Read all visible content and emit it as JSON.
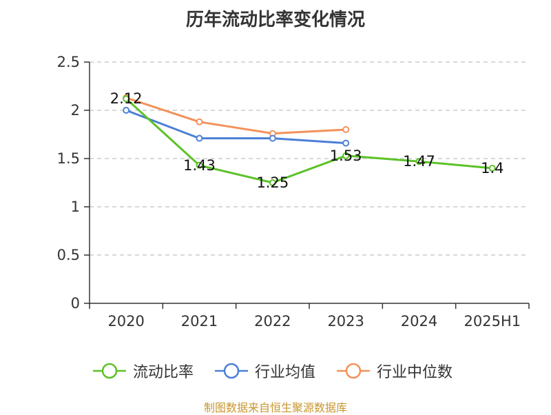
{
  "title": "历年流动比率变化情况",
  "source": "制图数据来自恒生聚源数据库",
  "chart_data": {
    "type": "line",
    "categories": [
      "2020",
      "2021",
      "2022",
      "2023",
      "2024",
      "2025H1"
    ],
    "ylim": [
      0,
      2.5
    ],
    "yticks": [
      "0",
      "0.5",
      "1",
      "1.5",
      "2",
      "2.5"
    ],
    "grid": true,
    "legend_position": "bottom",
    "series": [
      {
        "name": "流动比率",
        "color": "#5bc227",
        "values": [
          2.12,
          1.43,
          1.25,
          1.53,
          1.47,
          1.4
        ],
        "labels": [
          "2.12",
          "1.43",
          "1.25",
          "1.53",
          "1.47",
          "1.4"
        ]
      },
      {
        "name": "行业均值",
        "color": "#4a7fd6",
        "values": [
          2.0,
          1.71,
          1.71,
          1.66,
          null,
          null
        ]
      },
      {
        "name": "行业中位数",
        "color": "#f4915a",
        "values": [
          2.13,
          1.88,
          1.76,
          1.8,
          null,
          null
        ]
      }
    ]
  }
}
